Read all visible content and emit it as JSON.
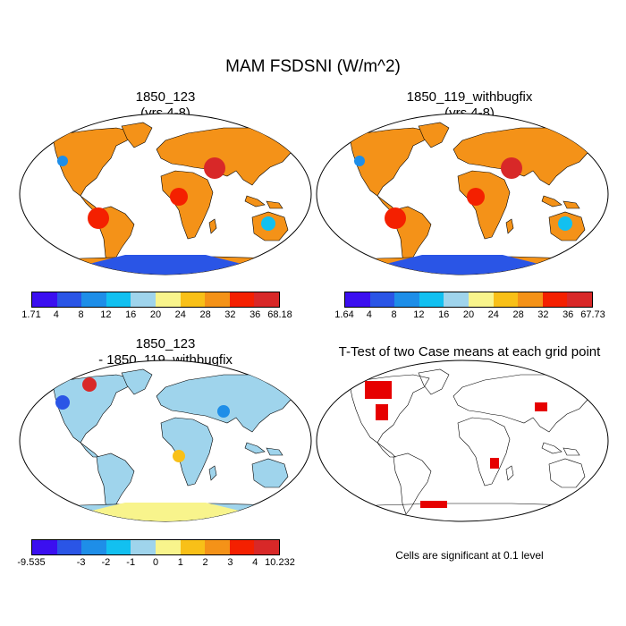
{
  "title": "MAM FSDSNI (W/m^2)",
  "panels": [
    {
      "line1": "1850_123",
      "line2": "(yrs 4-8)"
    },
    {
      "line1": "1850_119_withbugfix",
      "line2": "(yrs 4-8)"
    },
    {
      "line1": "1850_123",
      "line2": "- 1850_119_withbugfix"
    },
    {
      "line1": "T-Test of two Case means at each grid point",
      "line2": ""
    }
  ],
  "colorbars": [
    {
      "labels": [
        "1.71",
        "4",
        "8",
        "12",
        "16",
        "20",
        "24",
        "28",
        "32",
        "36",
        "68.18"
      ],
      "colors": [
        "#3b0ff0",
        "#2a55e6",
        "#1e8ee8",
        "#12c0f0",
        "#9fd4ec",
        "#f8f48c",
        "#f8c018",
        "#f49218",
        "#f42000",
        "#d82828"
      ]
    },
    {
      "labels": [
        "1.64",
        "4",
        "8",
        "12",
        "16",
        "20",
        "24",
        "28",
        "32",
        "36",
        "67.73"
      ],
      "colors": [
        "#3b0ff0",
        "#2a55e6",
        "#1e8ee8",
        "#12c0f0",
        "#9fd4ec",
        "#f8f48c",
        "#f8c018",
        "#f49218",
        "#f42000",
        "#d82828"
      ]
    },
    {
      "labels": [
        "-9.535",
        "-3",
        "-2",
        "-1",
        "0",
        "1",
        "2",
        "3",
        "4",
        "10.232"
      ],
      "colors": [
        "#3b0ff0",
        "#2a55e6",
        "#1e8ee8",
        "#12c0f0",
        "#9fd4ec",
        "#f8f48c",
        "#f8c018",
        "#f49218",
        "#f42000",
        "#d82828"
      ]
    }
  ],
  "significance_note": "Cells are significant at 0.1 level",
  "significance_color": "#e60000"
}
